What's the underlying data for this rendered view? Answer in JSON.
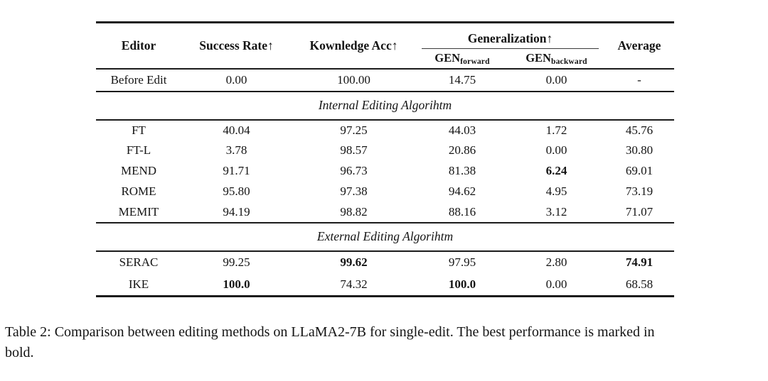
{
  "table": {
    "header": {
      "editor": "Editor",
      "success_rate": "Success Rate↑",
      "knowledge_acc": "Kownledge Acc↑",
      "generalization": "Generalization↑",
      "gen_forward": {
        "base": "GEN",
        "sub": "forward"
      },
      "gen_backward": {
        "base": "GEN",
        "sub": "backward"
      },
      "average": "Average"
    },
    "before_edit": {
      "editor": "Before Edit",
      "values": [
        "0.00",
        "100.00",
        "14.75",
        "0.00",
        "-"
      ],
      "bold": []
    },
    "sections": [
      {
        "title": "Internal Editing Algorihtm",
        "rows": [
          {
            "editor": "FT",
            "values": [
              "40.04",
              "97.25",
              "44.03",
              "1.72",
              "45.76"
            ],
            "bold": []
          },
          {
            "editor": "FT-L",
            "values": [
              "3.78",
              "98.57",
              "20.86",
              "0.00",
              "30.80"
            ],
            "bold": []
          },
          {
            "editor": "MEND",
            "values": [
              "91.71",
              "96.73",
              "81.38",
              "6.24",
              "69.01"
            ],
            "bold": [
              3
            ]
          },
          {
            "editor": "ROME",
            "values": [
              "95.80",
              "97.38",
              "94.62",
              "4.95",
              "73.19"
            ],
            "bold": []
          },
          {
            "editor": "MEMIT",
            "values": [
              "94.19",
              "98.82",
              "88.16",
              "3.12",
              "71.07"
            ],
            "bold": []
          }
        ]
      },
      {
        "title": "External Editing Algorihtm",
        "rows": [
          {
            "editor": "SERAC",
            "values": [
              "99.25",
              "99.62",
              "97.95",
              "2.80",
              "74.91"
            ],
            "bold": [
              1,
              4
            ]
          },
          {
            "editor": "IKE",
            "values": [
              "100.0",
              "74.32",
              "100.0",
              "0.00",
              "68.58"
            ],
            "bold": [
              0,
              2
            ]
          }
        ]
      }
    ]
  },
  "caption": {
    "line1": "Table 2: Comparison between editing methods on LLaMA2-7B for single-edit. The best performance is marked in",
    "line2": "bold."
  }
}
